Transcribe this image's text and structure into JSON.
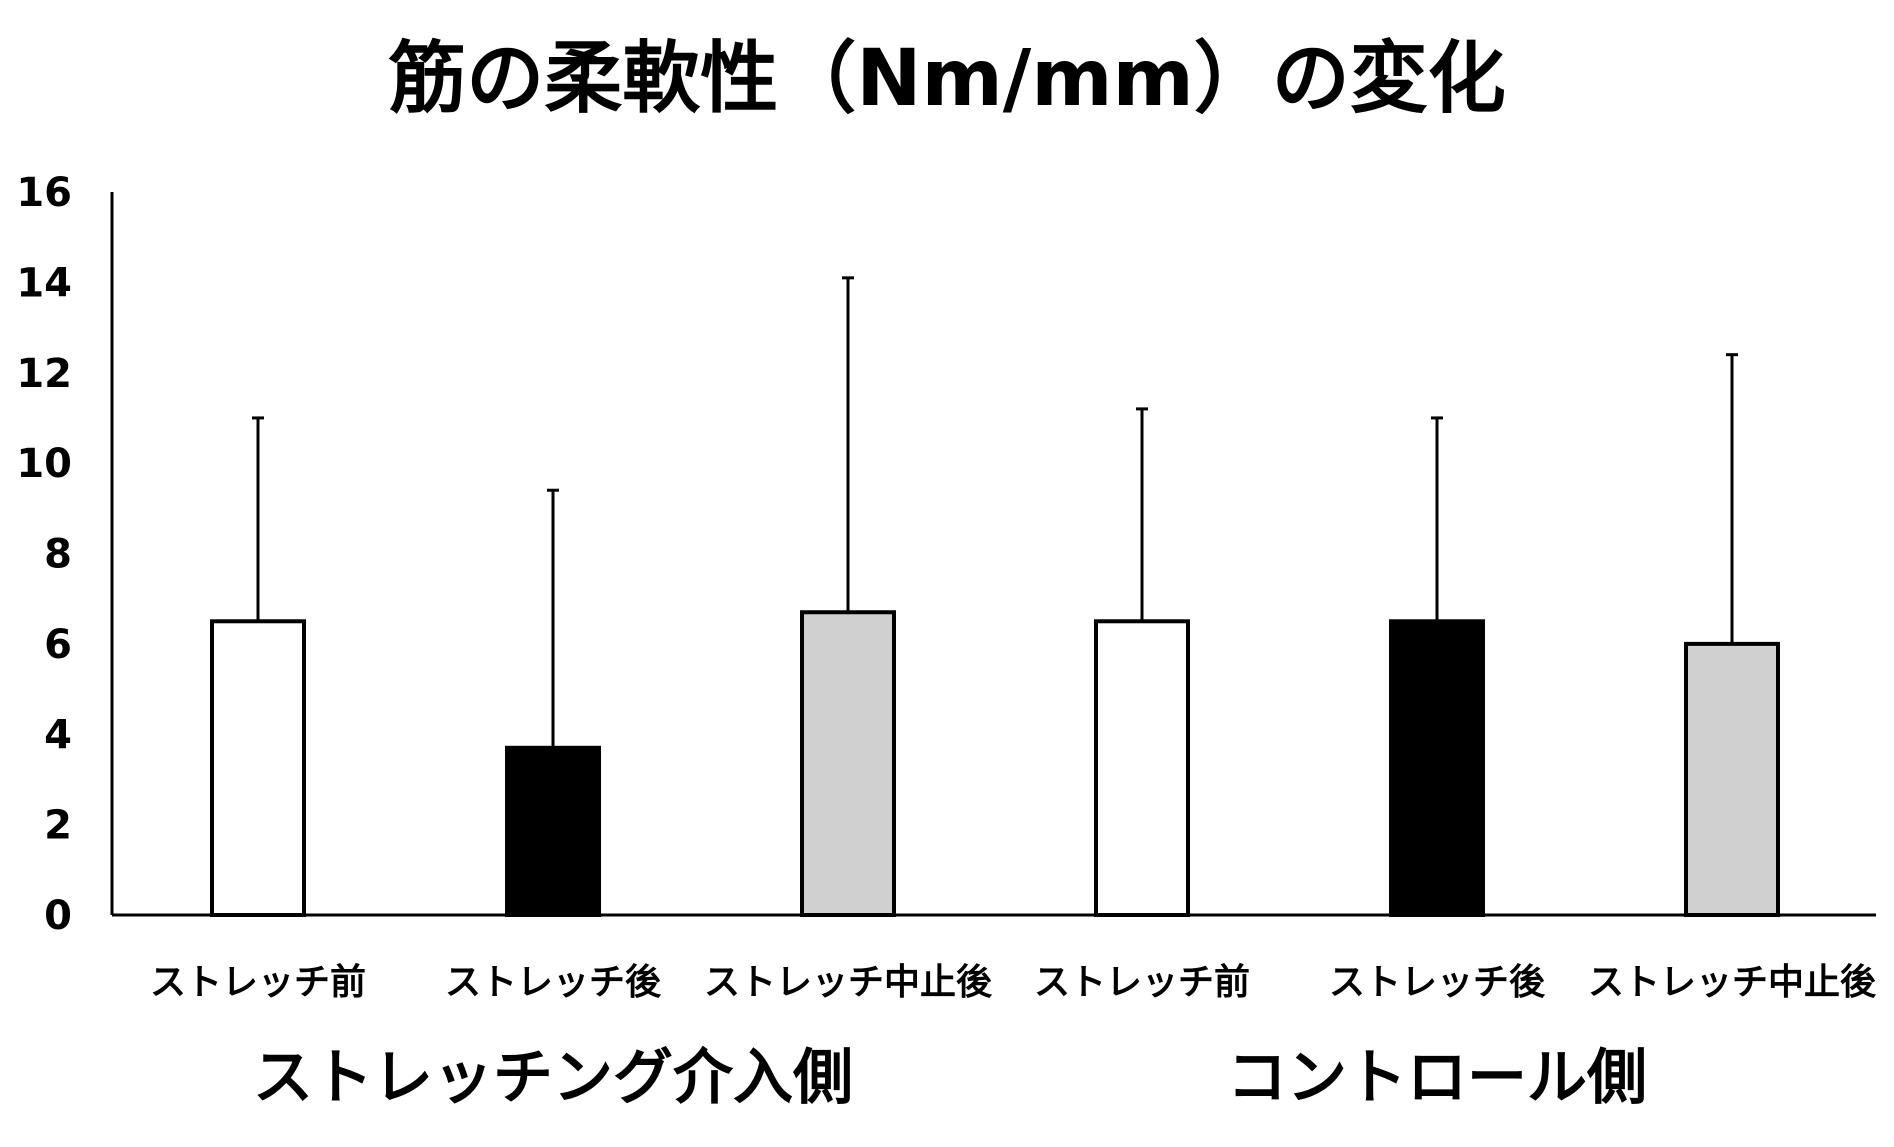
{
  "chart_data": {
    "type": "bar",
    "title": "筋の柔軟性（Nm/mm）の変化",
    "xlabel": "",
    "ylabel": "",
    "ylim": [
      0,
      16
    ],
    "yticks": [
      "0",
      "2",
      "4",
      "6",
      "8",
      "10",
      "12",
      "14",
      "16"
    ],
    "grid": false,
    "categories": [
      "ストレッチ前",
      "ストレッチ後",
      "ストレッチ中止後",
      "ストレッチ前",
      "ストレッチ後",
      "ストレッチ中止後"
    ],
    "values": [
      6.5,
      3.7,
      6.7,
      6.5,
      6.5,
      6.0
    ],
    "error_upper": [
      11.0,
      9.4,
      14.1,
      11.2,
      11.0,
      12.4
    ],
    "bar_colors": [
      "#ffffff",
      "#000000",
      "#d0d0d0",
      "#ffffff",
      "#000000",
      "#d0d0d0"
    ],
    "groups": [
      {
        "label": "ストレッチング介入側",
        "categories": [
          0,
          1,
          2
        ]
      },
      {
        "label": "コントロール側",
        "categories": [
          3,
          4,
          5
        ]
      }
    ]
  }
}
